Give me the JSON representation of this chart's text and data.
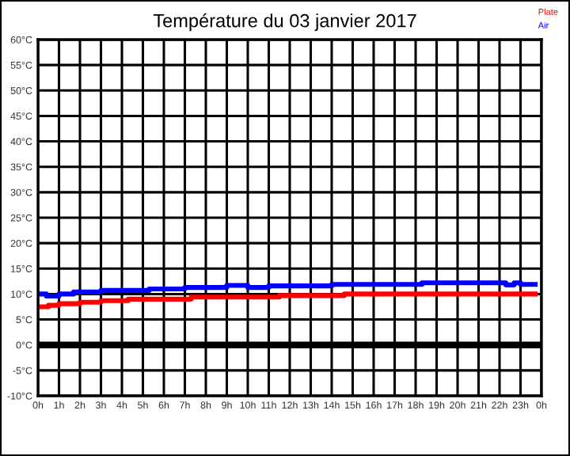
{
  "chart_data": {
    "type": "step",
    "title": "Température du 03 janvier 2017",
    "series": [
      {
        "name": "Plate",
        "color": "#ff0000",
        "x": [
          "2017-01-03T00:00",
          "2017-01-03T00:30",
          "2017-01-03T01:00",
          "2017-01-03T02:00",
          "2017-01-03T03:00",
          "2017-01-03T04:18",
          "2017-01-03T07:18",
          "2017-01-03T11:30",
          "2017-01-03T14:36",
          "2017-01-03T23:42"
        ],
        "values": [
          7.5,
          7.8,
          8.1,
          8.4,
          8.7,
          9.0,
          9.4,
          9.7,
          10.0,
          10.0
        ]
      },
      {
        "name": "Air",
        "color": "#0000ff",
        "x": [
          "2017-01-03T00:00",
          "2017-01-03T00:24",
          "2017-01-03T01:00",
          "2017-01-03T01:42",
          "2017-01-03T03:00",
          "2017-01-03T05:18",
          "2017-01-03T07:00",
          "2017-01-03T09:00",
          "2017-01-03T10:00",
          "2017-01-03T11:00",
          "2017-01-03T14:00",
          "2017-01-03T18:18",
          "2017-01-03T22:18",
          "2017-01-03T22:42",
          "2017-01-03T23:00",
          "2017-01-03T23:42"
        ],
        "values": [
          10,
          9.6,
          10,
          10.4,
          10.7,
          11,
          11.3,
          11.7,
          11.3,
          11.6,
          11.9,
          12.2,
          11.8,
          12.2,
          11.9,
          11.9
        ]
      }
    ],
    "xlim": [
      "2017-01-03T00:00",
      "2017-01-04T00:00"
    ],
    "xticks": [
      {
        "value": "2017-01-03T00:00",
        "label": "0h"
      },
      {
        "value": "2017-01-03T01:00",
        "label": "1h"
      },
      {
        "value": "2017-01-03T02:00",
        "label": "2h"
      },
      {
        "value": "2017-01-03T03:00",
        "label": "3h"
      },
      {
        "value": "2017-01-03T04:00",
        "label": "4h"
      },
      {
        "value": "2017-01-03T05:00",
        "label": "5h"
      },
      {
        "value": "2017-01-03T06:00",
        "label": "6h"
      },
      {
        "value": "2017-01-03T07:00",
        "label": "7h"
      },
      {
        "value": "2017-01-03T08:00",
        "label": "8h"
      },
      {
        "value": "2017-01-03T09:00",
        "label": "9h"
      },
      {
        "value": "2017-01-03T10:00",
        "label": "10h"
      },
      {
        "value": "2017-01-03T11:00",
        "label": "11h"
      },
      {
        "value": "2017-01-03T12:00",
        "label": "12h"
      },
      {
        "value": "2017-01-03T13:00",
        "label": "13h"
      },
      {
        "value": "2017-01-03T14:00",
        "label": "14h"
      },
      {
        "value": "2017-01-03T15:00",
        "label": "15h"
      },
      {
        "value": "2017-01-03T16:00",
        "label": "16h"
      },
      {
        "value": "2017-01-03T17:00",
        "label": "17h"
      },
      {
        "value": "2017-01-03T18:00",
        "label": "18h"
      },
      {
        "value": "2017-01-03T19:00",
        "label": "19h"
      },
      {
        "value": "2017-01-03T20:00",
        "label": "20h"
      },
      {
        "value": "2017-01-03T21:00",
        "label": "21h"
      },
      {
        "value": "2017-01-03T22:00",
        "label": "22h"
      },
      {
        "value": "2017-01-03T23:00",
        "label": "23h"
      },
      {
        "value": "2017-01-04T00:00",
        "label": "0h"
      }
    ],
    "ylim": [
      -10,
      60
    ],
    "yticks": [
      {
        "value": -10,
        "label": "-10°C"
      },
      {
        "value": -5,
        "label": "-5°C"
      },
      {
        "value": 0,
        "label": "0°C"
      },
      {
        "value": 5,
        "label": "5°C"
      },
      {
        "value": 10,
        "label": "10°C"
      },
      {
        "value": 15,
        "label": "15°C"
      },
      {
        "value": 20,
        "label": "20°C"
      },
      {
        "value": 25,
        "label": "25°C"
      },
      {
        "value": 30,
        "label": "30°C"
      },
      {
        "value": 35,
        "label": "35°C"
      },
      {
        "value": 40,
        "label": "40°C"
      },
      {
        "value": 45,
        "label": "45°C"
      },
      {
        "value": 50,
        "label": "50°C"
      },
      {
        "value": 55,
        "label": "55°C"
      },
      {
        "value": 60,
        "label": "60°C"
      }
    ],
    "ref_lines": [
      {
        "axis": "y",
        "value": 0,
        "color": "#000000"
      }
    ],
    "grid": true,
    "legend": "top right"
  }
}
